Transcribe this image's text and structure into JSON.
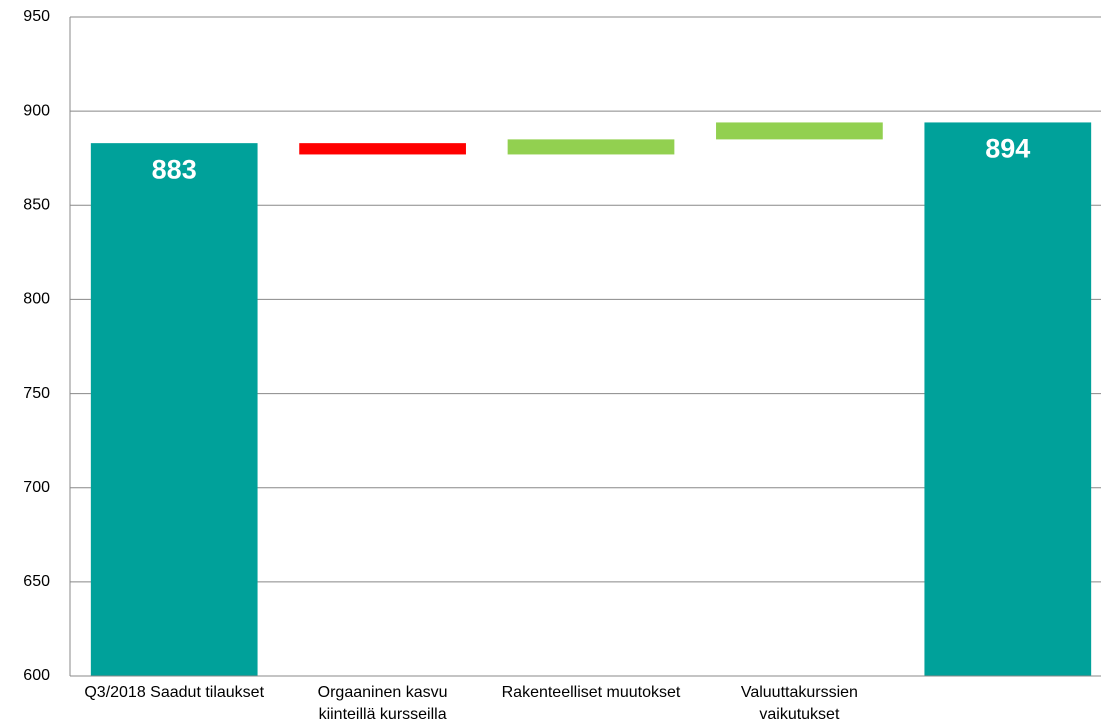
{
  "chart_data": {
    "type": "waterfall",
    "categories": [
      "Q3/2018 Saadut tilaukset",
      "Orgaaninen kasvu kiinteillä kursseilla",
      "Rakenteelliset muutokset",
      "Valuuttakurssien vaikutukset",
      null
    ],
    "values": [
      883,
      -6,
      8,
      9,
      894
    ],
    "measure": [
      "absolute",
      "relative",
      "relative",
      "relative",
      "total"
    ],
    "colors": [
      "#00a19a",
      "#ff0000",
      "#92d050",
      "#92d050",
      "#00a19a"
    ],
    "ylim": [
      600,
      950
    ],
    "yticks": [
      600,
      650,
      700,
      750,
      800,
      850,
      900,
      950
    ],
    "grid": true
  }
}
